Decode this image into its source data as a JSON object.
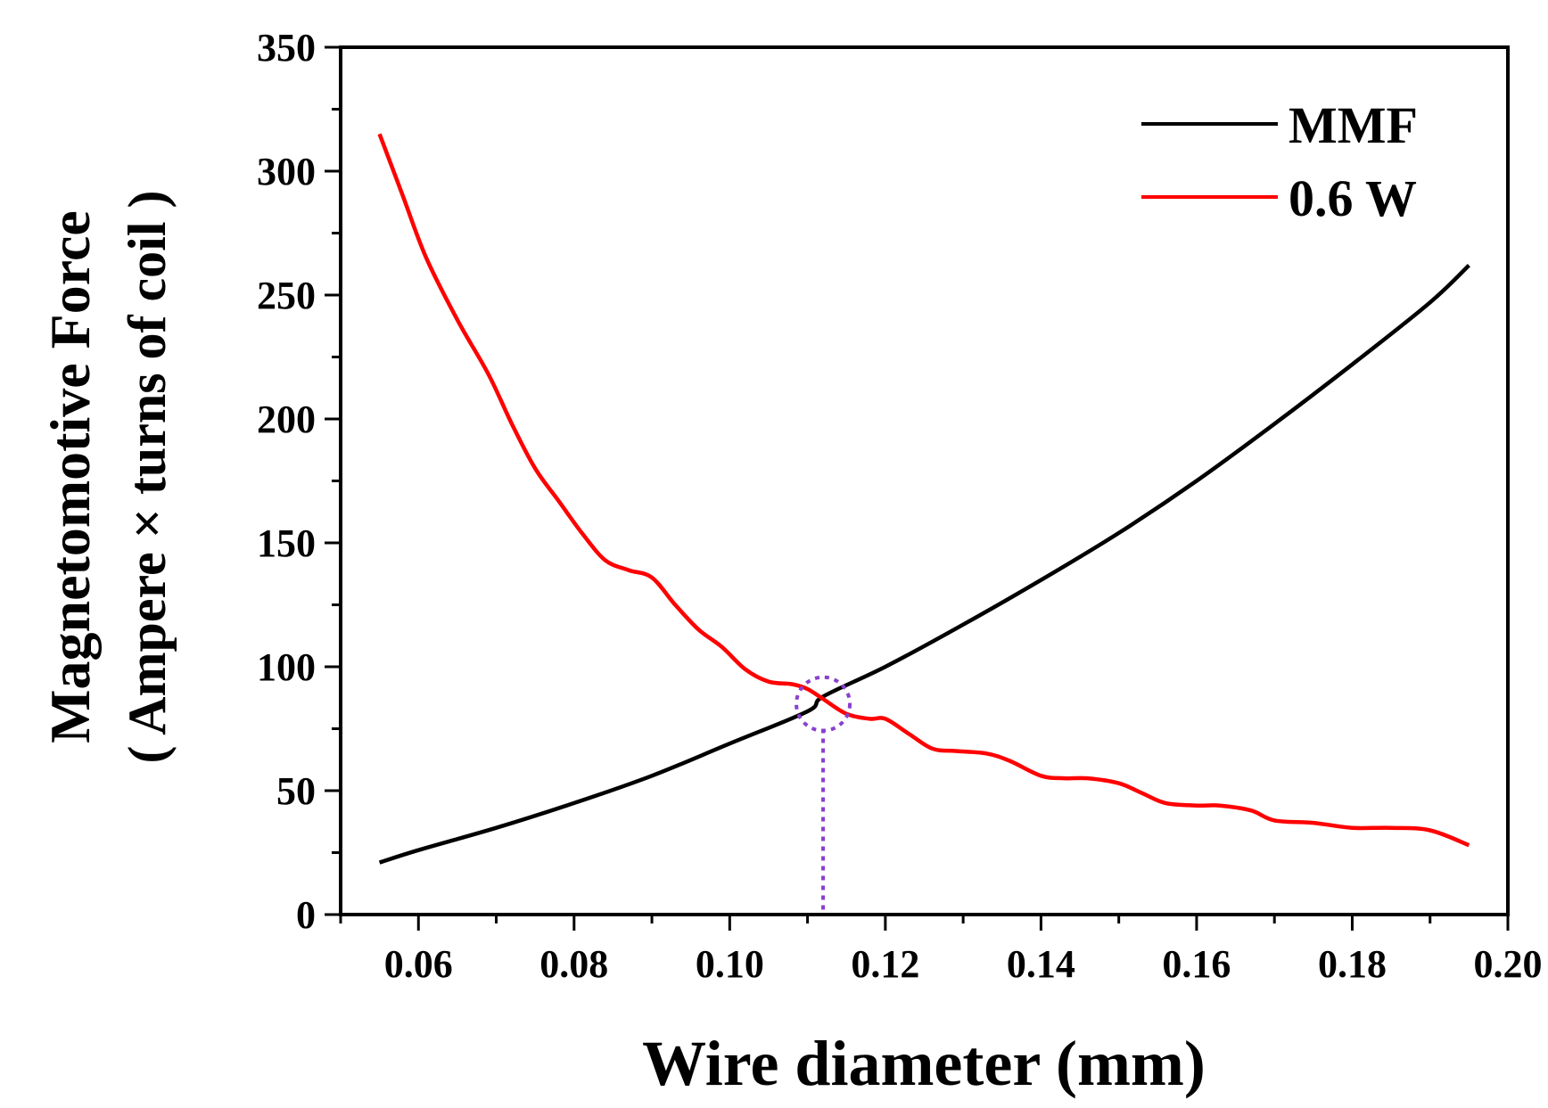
{
  "chart_data": {
    "type": "line",
    "title": "",
    "xlabel": "Wire diameter (mm)",
    "ylabel_line1": "Magnetomotive Force",
    "ylabel_line2": "( Ampere × turns of coil )",
    "xlim": [
      0.05,
      0.2
    ],
    "ylim": [
      0,
      350
    ],
    "x_ticks": [
      0.06,
      0.08,
      0.1,
      0.12,
      0.14,
      0.16,
      0.18,
      0.2
    ],
    "x_tick_labels": [
      "0.06",
      "0.08",
      "0.10",
      "0.12",
      "0.14",
      "0.16",
      "0.18",
      "0.20"
    ],
    "y_ticks": [
      0,
      50,
      100,
      150,
      200,
      250,
      300,
      350
    ],
    "y_tick_labels": [
      "0",
      "50",
      "100",
      "150",
      "200",
      "250",
      "300",
      "350"
    ],
    "grid": false,
    "legend_position": "top-right",
    "series": [
      {
        "name": "MMF",
        "color": "#000000",
        "x": [
          0.055,
          0.06,
          0.07,
          0.08,
          0.09,
          0.1,
          0.11,
          0.112,
          0.12,
          0.13,
          0.14,
          0.15,
          0.16,
          0.17,
          0.18,
          0.19,
          0.195
        ],
        "y": [
          21,
          26,
          35,
          45,
          56,
          69,
          82,
          88,
          100,
          117,
          135,
          154,
          175,
          198,
          222,
          247,
          262
        ]
      },
      {
        "name": "0.6 W",
        "color": "#ff0000",
        "x": [
          0.055,
          0.058,
          0.061,
          0.065,
          0.069,
          0.072,
          0.075,
          0.078,
          0.081,
          0.084,
          0.087,
          0.09,
          0.093,
          0.096,
          0.099,
          0.102,
          0.105,
          0.108,
          0.11,
          0.112,
          0.115,
          0.118,
          0.12,
          0.123,
          0.126,
          0.129,
          0.133,
          0.136,
          0.14,
          0.143,
          0.146,
          0.15,
          0.153,
          0.156,
          0.16,
          0.163,
          0.167,
          0.17,
          0.175,
          0.18,
          0.185,
          0.19,
          0.195
        ],
        "y": [
          315,
          290,
          265,
          240,
          218,
          198,
          180,
          167,
          154,
          143,
          139,
          136,
          125,
          115,
          108,
          99,
          94,
          93,
          91,
          87,
          81,
          79,
          79,
          73,
          67,
          66,
          65,
          62,
          56,
          55,
          55,
          53,
          49,
          45,
          44,
          44,
          42,
          38,
          37,
          35,
          35,
          34,
          28
        ]
      }
    ],
    "annotations": [
      {
        "type": "intersection-circle",
        "x": 0.112,
        "y": 85,
        "color": "#8a3fcf"
      },
      {
        "type": "vertical-dotted-line",
        "x": 0.112,
        "y_from": 0,
        "y_to": 75,
        "color": "#8a3fcf"
      }
    ]
  }
}
